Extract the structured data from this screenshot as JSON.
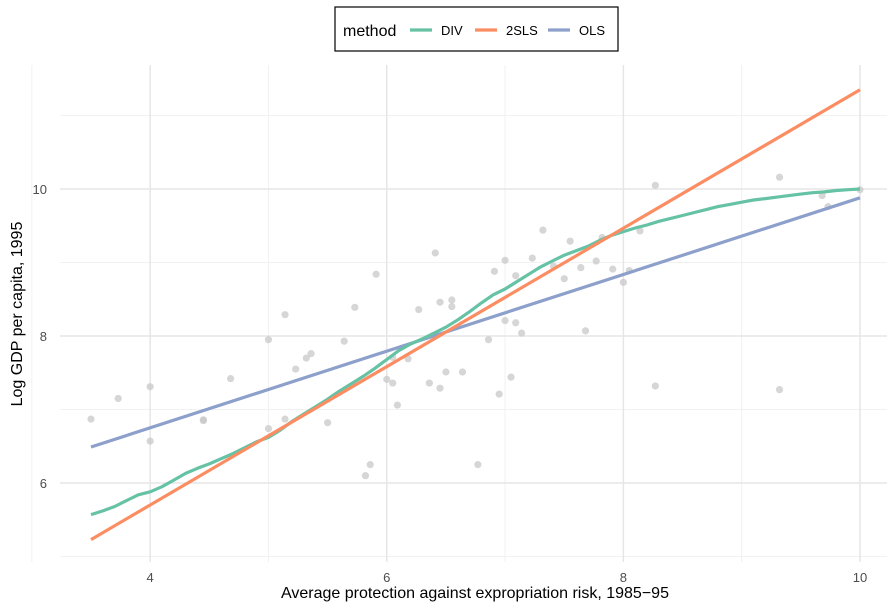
{
  "chart_data": {
    "type": "line",
    "xlabel": "Average protection against expropriation risk, 1985−95",
    "ylabel": "Log GDP per capita, 1995",
    "xlim": [
      3.5,
      10.0
    ],
    "ylim": [
      5.0,
      11.4
    ],
    "x_ticks": [
      4,
      6,
      8,
      10
    ],
    "x_tick_labels": [
      "4",
      "6",
      "8",
      "10"
    ],
    "y_ticks": [
      6,
      8,
      10
    ],
    "y_tick_labels": [
      "6",
      "8",
      "10"
    ],
    "grid": true,
    "legend": {
      "title": "method",
      "position": "top",
      "entries": [
        "DIV",
        "2SLS",
        "OLS"
      ]
    },
    "colors": {
      "DIV": "#66c2a5",
      "2SLS": "#fc8d62",
      "OLS": "#8da0cb",
      "points": "#c8c8c8"
    },
    "series": [
      {
        "name": "DIV",
        "x": [
          3.5,
          3.6,
          3.7,
          3.8,
          3.9,
          4.0,
          4.1,
          4.2,
          4.3,
          4.4,
          4.5,
          4.6,
          4.7,
          4.8,
          4.9,
          5.0,
          5.1,
          5.2,
          5.3,
          5.4,
          5.5,
          5.6,
          5.7,
          5.8,
          5.9,
          6.0,
          6.1,
          6.2,
          6.3,
          6.4,
          6.5,
          6.6,
          6.7,
          6.8,
          6.9,
          7.0,
          7.1,
          7.2,
          7.3,
          7.4,
          7.5,
          7.6,
          7.7,
          7.8,
          7.9,
          8.0,
          8.1,
          8.2,
          8.3,
          8.4,
          8.5,
          8.6,
          8.7,
          8.8,
          8.9,
          9.0,
          9.1,
          9.2,
          9.3,
          9.4,
          9.5,
          9.6,
          9.7,
          9.8,
          9.9,
          10.0
        ],
        "y": [
          5.57,
          5.62,
          5.68,
          5.76,
          5.84,
          5.88,
          5.95,
          6.04,
          6.13,
          6.2,
          6.26,
          6.33,
          6.4,
          6.48,
          6.56,
          6.62,
          6.72,
          6.84,
          6.94,
          7.04,
          7.14,
          7.25,
          7.35,
          7.45,
          7.56,
          7.68,
          7.8,
          7.89,
          7.96,
          8.04,
          8.12,
          8.22,
          8.33,
          8.45,
          8.56,
          8.64,
          8.74,
          8.84,
          8.94,
          9.02,
          9.1,
          9.16,
          9.22,
          9.3,
          9.37,
          9.42,
          9.47,
          9.51,
          9.56,
          9.6,
          9.64,
          9.68,
          9.72,
          9.76,
          9.79,
          9.82,
          9.85,
          9.87,
          9.89,
          9.91,
          9.93,
          9.95,
          9.96,
          9.98,
          9.99,
          10.0
        ]
      },
      {
        "name": "2SLS",
        "x": [
          3.5,
          10.0
        ],
        "y": [
          5.23,
          11.35
        ]
      },
      {
        "name": "OLS",
        "x": [
          3.5,
          10.0
        ],
        "y": [
          6.49,
          9.88
        ]
      }
    ],
    "points": {
      "x": [
        3.5,
        3.73,
        4.0,
        4.0,
        4.45,
        4.45,
        4.68,
        5.0,
        5.0,
        5.14,
        5.14,
        5.23,
        5.32,
        5.36,
        5.5,
        5.64,
        5.73,
        5.82,
        5.86,
        5.91,
        6.0,
        6.05,
        6.05,
        6.09,
        6.18,
        6.27,
        6.36,
        6.41,
        6.45,
        6.45,
        6.5,
        6.55,
        6.55,
        6.64,
        6.77,
        6.86,
        6.91,
        6.95,
        7.0,
        7.0,
        7.05,
        7.09,
        7.09,
        7.14,
        7.23,
        7.32,
        7.41,
        7.5,
        7.55,
        7.64,
        7.68,
        7.77,
        7.82,
        7.91,
        8.0,
        8.05,
        8.14,
        8.27,
        8.27,
        9.32,
        9.32,
        9.68,
        9.73,
        10.0
      ],
      "y": [
        6.87,
        7.15,
        7.31,
        6.57,
        6.86,
        6.85,
        7.42,
        7.95,
        6.74,
        8.29,
        6.87,
        7.55,
        7.7,
        7.76,
        6.82,
        7.93,
        8.39,
        6.1,
        6.25,
        8.84,
        7.41,
        7.71,
        7.36,
        7.06,
        7.69,
        8.36,
        7.36,
        9.13,
        8.46,
        7.29,
        7.51,
        8.4,
        8.49,
        7.51,
        6.25,
        7.95,
        8.88,
        7.21,
        8.21,
        9.03,
        7.44,
        8.82,
        8.18,
        8.04,
        9.06,
        9.44,
        8.95,
        8.78,
        9.29,
        8.93,
        8.07,
        9.02,
        9.34,
        8.91,
        8.73,
        8.89,
        9.43,
        10.05,
        7.32,
        7.27,
        10.16,
        9.91,
        9.76,
        9.99
      ]
    }
  }
}
